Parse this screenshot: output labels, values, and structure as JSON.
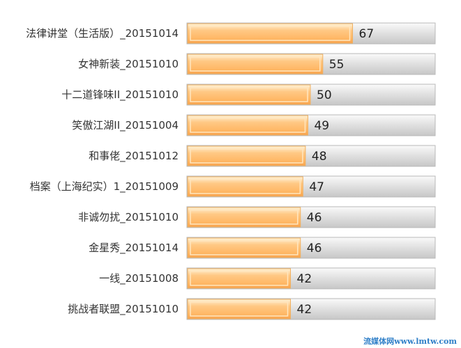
{
  "chart_data": {
    "type": "bar",
    "orientation": "horizontal",
    "categories": [
      "法律讲堂（生活版）_20151014",
      "女神新装_20151010",
      "十二道锋味II_20151010",
      "笑傲江湖II_20151004",
      "和事佬_20151012",
      "档案（上海纪实）1_20151009",
      "非诚勿扰_20151010",
      "金星秀_20151014",
      "一线_20151008",
      "挑战者联盟_20151010"
    ],
    "values": [
      67,
      55,
      50,
      49,
      48,
      47,
      46,
      46,
      42,
      42
    ],
    "xlim": [
      0,
      100
    ],
    "title": "",
    "xlabel": "",
    "ylabel": "",
    "grid": false,
    "legend": "none",
    "bar_color": "#ffc27a",
    "track_color": "#d9d9d9"
  },
  "watermark": "流媒体网www.lmtw.com"
}
